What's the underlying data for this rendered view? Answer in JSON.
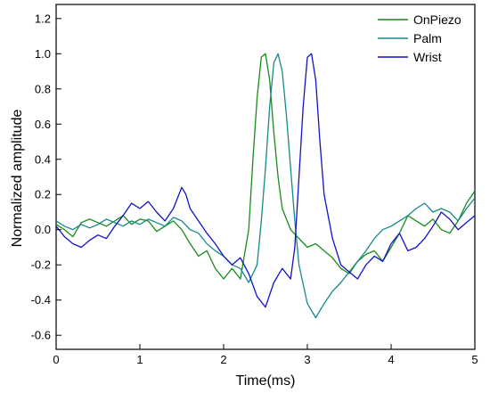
{
  "chart_data": {
    "type": "line",
    "xlabel": "Time(ms)",
    "ylabel": "Normalized amplitude",
    "xlim": [
      0,
      5
    ],
    "ylim": [
      -0.68,
      1.28
    ],
    "xticks": [
      0,
      1,
      2,
      3,
      4,
      5
    ],
    "yticks": [
      -0.6,
      -0.4,
      -0.2,
      0.0,
      0.2,
      0.4,
      0.6,
      0.8,
      1.0,
      1.2
    ],
    "ytick_labels": [
      "-0.6",
      "-0.4",
      "-0.2",
      "0.0",
      "0.2",
      "0.4",
      "0.6",
      "0.8",
      "1.0",
      "1.2"
    ],
    "grid": false,
    "legend_position": "top-right",
    "series": [
      {
        "name": "OnPiezo",
        "color": "#1a8c1a",
        "x": [
          0,
          0.1,
          0.2,
          0.3,
          0.4,
          0.5,
          0.6,
          0.7,
          0.8,
          0.9,
          1.0,
          1.1,
          1.2,
          1.3,
          1.4,
          1.5,
          1.6,
          1.7,
          1.8,
          1.9,
          2.0,
          2.1,
          2.2,
          2.3,
          2.35,
          2.4,
          2.45,
          2.5,
          2.55,
          2.6,
          2.65,
          2.7,
          2.8,
          2.9,
          3.0,
          3.1,
          3.2,
          3.3,
          3.4,
          3.5,
          3.6,
          3.7,
          3.8,
          3.9,
          4.0,
          4.1,
          4.2,
          4.3,
          4.4,
          4.5,
          4.6,
          4.7,
          4.8,
          4.9,
          5.0
        ],
        "y": [
          0.03,
          0.0,
          -0.04,
          0.04,
          0.06,
          0.04,
          0.02,
          0.05,
          0.08,
          0.03,
          0.06,
          0.05,
          -0.01,
          0.02,
          0.05,
          0.0,
          -0.08,
          -0.15,
          -0.12,
          -0.22,
          -0.28,
          -0.22,
          -0.28,
          0.0,
          0.4,
          0.75,
          0.98,
          1.0,
          0.85,
          0.55,
          0.3,
          0.12,
          0.0,
          -0.05,
          -0.1,
          -0.08,
          -0.12,
          -0.16,
          -0.22,
          -0.25,
          -0.18,
          -0.14,
          -0.12,
          -0.18,
          -0.1,
          -0.02,
          0.08,
          0.05,
          0.02,
          0.06,
          0.0,
          -0.02,
          0.05,
          0.15,
          0.22
        ]
      },
      {
        "name": "Palm",
        "color": "#178a8a",
        "x": [
          0,
          0.1,
          0.2,
          0.3,
          0.4,
          0.5,
          0.6,
          0.7,
          0.8,
          0.9,
          1.0,
          1.1,
          1.2,
          1.3,
          1.4,
          1.5,
          1.6,
          1.7,
          1.8,
          1.9,
          2.0,
          2.1,
          2.2,
          2.3,
          2.4,
          2.45,
          2.5,
          2.55,
          2.6,
          2.65,
          2.7,
          2.75,
          2.8,
          2.85,
          2.9,
          3.0,
          3.1,
          3.2,
          3.3,
          3.4,
          3.5,
          3.6,
          3.7,
          3.8,
          3.9,
          4.0,
          4.1,
          4.2,
          4.3,
          4.4,
          4.5,
          4.6,
          4.7,
          4.8,
          4.9,
          5.0
        ],
        "y": [
          0.05,
          0.02,
          0.0,
          0.03,
          0.01,
          0.03,
          0.06,
          0.04,
          0.02,
          0.05,
          0.03,
          0.06,
          0.04,
          0.02,
          0.07,
          0.05,
          0.0,
          -0.02,
          -0.08,
          -0.12,
          -0.15,
          -0.2,
          -0.22,
          -0.3,
          -0.2,
          0.05,
          0.35,
          0.7,
          0.95,
          1.0,
          0.9,
          0.65,
          0.35,
          0.05,
          -0.2,
          -0.42,
          -0.5,
          -0.42,
          -0.35,
          -0.3,
          -0.24,
          -0.18,
          -0.12,
          -0.05,
          0.0,
          0.02,
          0.05,
          0.08,
          0.12,
          0.15,
          0.1,
          0.12,
          0.1,
          0.05,
          0.12,
          0.18
        ]
      },
      {
        "name": "Wrist",
        "color": "#1212c8",
        "x": [
          0,
          0.1,
          0.2,
          0.3,
          0.4,
          0.5,
          0.6,
          0.7,
          0.8,
          0.9,
          1.0,
          1.1,
          1.2,
          1.3,
          1.4,
          1.5,
          1.55,
          1.6,
          1.7,
          1.8,
          1.9,
          2.0,
          2.1,
          2.2,
          2.3,
          2.4,
          2.5,
          2.6,
          2.7,
          2.8,
          2.85,
          2.9,
          2.95,
          3.0,
          3.05,
          3.1,
          3.15,
          3.2,
          3.3,
          3.4,
          3.5,
          3.6,
          3.7,
          3.8,
          3.9,
          4.0,
          4.1,
          4.2,
          4.3,
          4.4,
          4.5,
          4.6,
          4.7,
          4.8,
          4.9,
          5.0
        ],
        "y": [
          0.02,
          -0.04,
          -0.08,
          -0.1,
          -0.06,
          -0.03,
          -0.05,
          0.02,
          0.08,
          0.15,
          0.12,
          0.16,
          0.1,
          0.05,
          0.12,
          0.24,
          0.2,
          0.12,
          0.05,
          -0.02,
          -0.08,
          -0.15,
          -0.2,
          -0.16,
          -0.25,
          -0.38,
          -0.44,
          -0.3,
          -0.22,
          -0.28,
          -0.1,
          0.3,
          0.7,
          0.98,
          1.0,
          0.85,
          0.5,
          0.2,
          -0.05,
          -0.2,
          -0.24,
          -0.28,
          -0.2,
          -0.15,
          -0.18,
          -0.08,
          -0.02,
          -0.12,
          -0.1,
          -0.05,
          0.02,
          0.1,
          0.06,
          0.0,
          0.04,
          0.08
        ]
      }
    ]
  }
}
